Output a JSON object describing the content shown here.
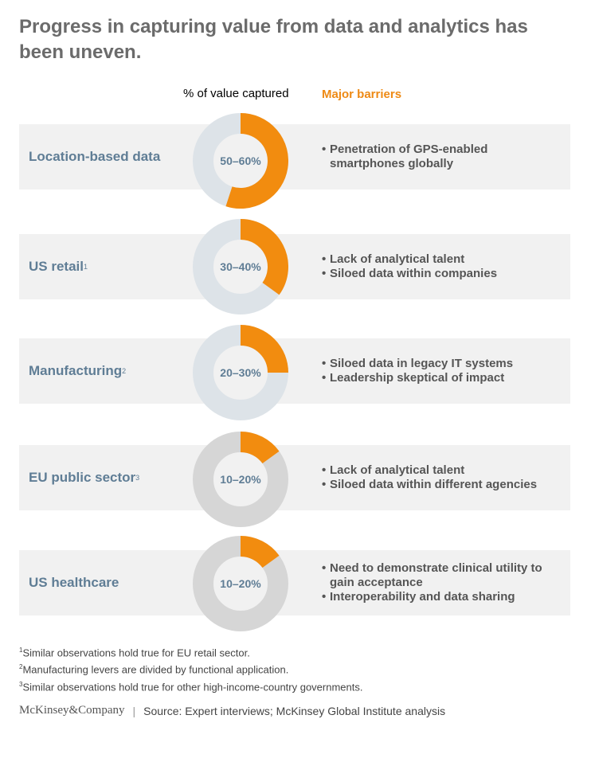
{
  "title": "Progress in capturing value from data and analytics has been uneven.",
  "column_headers": {
    "value_captured": "% of value captured",
    "major_barriers": "Major barriers"
  },
  "colors": {
    "accent": "#f28c0f",
    "ring_light": "#dde3e8",
    "ring_gray": "#d6d6d6",
    "label": "#5f7d95",
    "header_accent": "#ee8a15"
  },
  "chart_data": {
    "type": "donut",
    "categories": [
      "Location-based data",
      "US retail",
      "Manufacturing",
      "EU public sector",
      "US healthcare"
    ],
    "ranges": [
      [
        50,
        60
      ],
      [
        30,
        40
      ],
      [
        20,
        30
      ],
      [
        10,
        20
      ],
      [
        10,
        20
      ]
    ],
    "values": [
      55,
      35,
      25,
      15,
      15
    ],
    "range_labels": [
      "50–60%",
      "30–40%",
      "20–30%",
      "10–20%",
      "10–20%"
    ]
  },
  "rows": [
    {
      "label": "Location-based data",
      "sup": "",
      "pct": "50–60%",
      "barriers": [
        "Penetration of GPS-enabled smartphones globally"
      ]
    },
    {
      "label": "US retail",
      "sup": "1",
      "pct": "30–40%",
      "barriers": [
        "Lack of analytical talent",
        "Siloed data within companies"
      ]
    },
    {
      "label": "Manufacturing",
      "sup": "2",
      "pct": "20–30%",
      "barriers": [
        "Siloed data in legacy IT systems",
        "Leadership skeptical of impact"
      ]
    },
    {
      "label": "EU public sector",
      "sup": "3",
      "pct": "10–20%",
      "barriers": [
        "Lack of analytical talent",
        "Siloed data within different agencies"
      ]
    },
    {
      "label": "US healthcare",
      "sup": "",
      "pct": "10–20%",
      "barriers": [
        "Need to demonstrate clinical utility to gain acceptance",
        "Interoperability and data sharing"
      ]
    }
  ],
  "footnotes": [
    {
      "num": "1",
      "text": "Similar observations hold true for EU retail sector."
    },
    {
      "num": "2",
      "text": "Manufacturing levers are divided by functional application."
    },
    {
      "num": "3",
      "text": "Similar observations hold true for other high-income-country governments."
    }
  ],
  "footer": {
    "brand": "McKinsey&Company",
    "separator": "|",
    "source": "Source: Expert interviews; McKinsey Global Institute analysis"
  }
}
